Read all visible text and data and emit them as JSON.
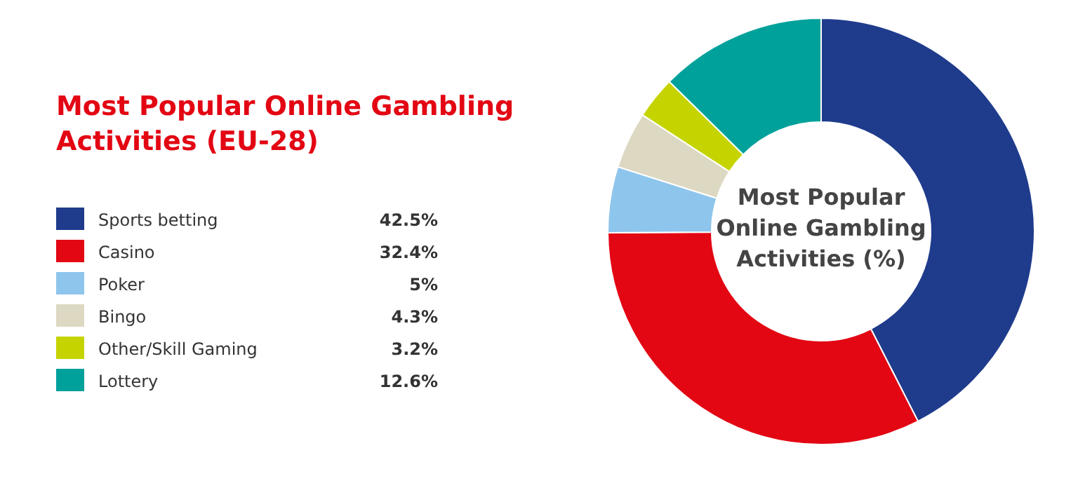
{
  "chart_data": {
    "type": "donut",
    "title": "Most Popular Online Gambling Activities (EU-28)",
    "subtitle": "Most Popular Online Gambling Activities (%)",
    "categories": [
      "Sports betting",
      "Casino",
      "Poker",
      "Bingo",
      "Other/Skill Gaming",
      "Lottery"
    ],
    "values": [
      42.5,
      32.4,
      5,
      4.3,
      3.2,
      12.6
    ],
    "colors": [
      "#1f3b8c",
      "#e30613",
      "#8ec5ec",
      "#ddd8c2",
      "#c5d400",
      "#00a19b"
    ],
    "value_labels": [
      "42.5%",
      "32.4%",
      "5%",
      "4.3%",
      "3.2%",
      "12.6%"
    ],
    "legend": "left"
  }
}
